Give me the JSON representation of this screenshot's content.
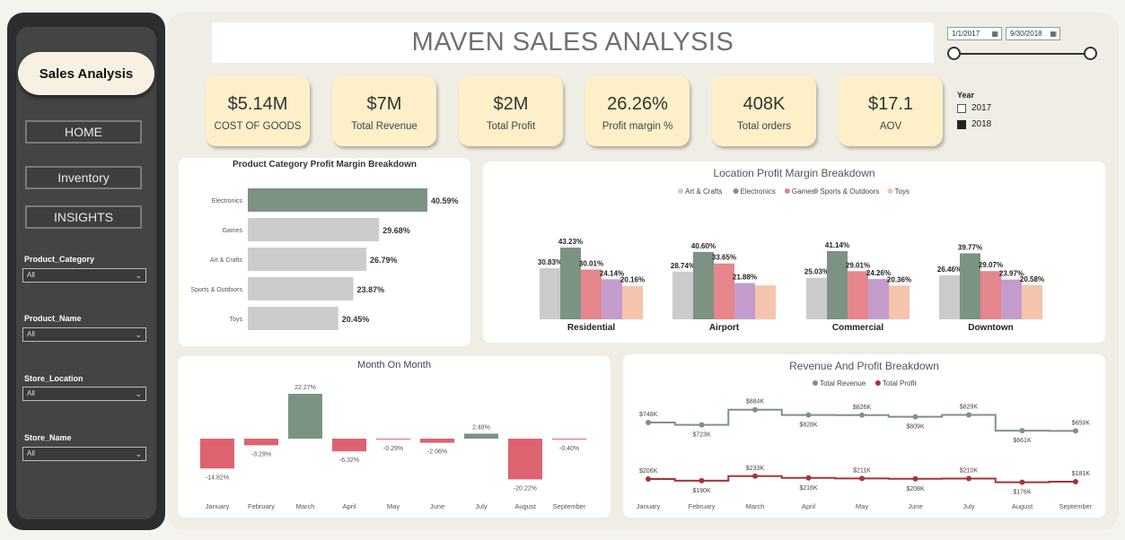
{
  "sidebar": {
    "title": "Sales Analysis",
    "nav": [
      "HOME",
      "Inventory",
      "INSIGHTS"
    ],
    "filters": [
      {
        "label": "Product_Category",
        "value": "All"
      },
      {
        "label": "Product_Name",
        "value": "All"
      },
      {
        "label": "Store_Location",
        "value": "All"
      },
      {
        "label": "Store_Name",
        "value": "All"
      }
    ]
  },
  "header": {
    "title": "MAVEN SALES ANALYSIS"
  },
  "date_range": {
    "start": "1/1/2017",
    "end": "9/30/2018"
  },
  "kpis": [
    {
      "value": "$5.14M",
      "label": "COST OF GOODS"
    },
    {
      "value": "$7M",
      "label": "Total Revenue"
    },
    {
      "value": "$2M",
      "label": "Total Profit"
    },
    {
      "value": "26.26%",
      "label": "Profit margin %"
    },
    {
      "value": "408K",
      "label": "Total orders"
    },
    {
      "value": "$17.1",
      "label": "AOV"
    }
  ],
  "year_filter": {
    "title": "Year",
    "items": [
      {
        "label": "2017",
        "checked": false
      },
      {
        "label": "2018",
        "checked": true
      }
    ]
  },
  "chart_data": [
    {
      "type": "bar",
      "orientation": "horizontal",
      "title": "Product Category Profit Margin Breakdown",
      "categories": [
        "Electronics",
        "Games",
        "Art & Crafts",
        "Sports & Outdoors",
        "Toys"
      ],
      "values": [
        40.59,
        29.68,
        26.79,
        23.87,
        20.45
      ],
      "labels": [
        "40.59%",
        "29.68%",
        "26.79%",
        "23.87%",
        "20.45%"
      ],
      "colors": [
        "#7c9384",
        "#cccccc"
      ]
    },
    {
      "type": "bar",
      "title": "Location Profit Margin Breakdown",
      "legend": "top-center",
      "categories": [
        "Residential",
        "Airport",
        "Commercial",
        "Downtown"
      ],
      "series": [
        {
          "name": "Art & Crafts",
          "color": "#cbcbcb",
          "values": [
            30.83,
            28.74,
            25.03,
            26.46
          ],
          "labels": [
            "30.83%",
            "28.74%",
            "25.03%",
            "26.46%"
          ]
        },
        {
          "name": "Electronics",
          "color": "#7c9384",
          "values": [
            43.23,
            40.6,
            41.14,
            39.77
          ],
          "labels": [
            "43.23%",
            "40.60%",
            "41.14%",
            "39.77%"
          ]
        },
        {
          "name": "Games",
          "color": "#e5868c",
          "values": [
            30.01,
            33.65,
            29.01,
            29.07
          ],
          "labels": [
            "30.01%",
            "33.65%",
            "29.01%",
            "29.07%"
          ]
        },
        {
          "name": "Sports & Outdoors",
          "color": "#c49ccc",
          "values": [
            24.14,
            21.88,
            24.26,
            23.97
          ],
          "labels": [
            "24.14%",
            "21.88%",
            "24.26%",
            "23.97%"
          ]
        },
        {
          "name": "Toys",
          "color": "#f4c4ac",
          "values": [
            20.16,
            20.4,
            20.36,
            20.58
          ],
          "labels": [
            "20.16%",
            "",
            "20.36%",
            "20.58%"
          ]
        }
      ]
    },
    {
      "type": "bar",
      "title": "Month On Month",
      "categories": [
        "January",
        "February",
        "March",
        "April",
        "May",
        "June",
        "July",
        "August",
        "September"
      ],
      "values": [
        -14.82,
        -3.29,
        22.27,
        -6.32,
        -0.29,
        -2.06,
        2.48,
        -20.22,
        -0.4
      ],
      "labels": [
        "-14.82%",
        "-3.29%",
        "22.27%",
        "-6.32%",
        "-0.29%",
        "-2.06%",
        "2.48%",
        "-20.22%",
        "-0.40%"
      ],
      "colors": {
        "positive": "#7c9384",
        "negative": "#de6370"
      }
    },
    {
      "type": "line",
      "title": "Revenue And Profit Breakdown",
      "legend": "top-center",
      "categories": [
        "January",
        "February",
        "March",
        "April",
        "May",
        "June",
        "July",
        "August",
        "September"
      ],
      "series": [
        {
          "name": "Total Revenue",
          "color": "#7c9384",
          "values": [
            748,
            723,
            884,
            828,
            826,
            809,
            829,
            661,
            659
          ],
          "labels": [
            "$748K",
            "$723K",
            "$884K",
            "$828K",
            "$826K",
            "$809K",
            "$829K",
            "$661K",
            "$659K"
          ]
        },
        {
          "name": "Total Profit",
          "color": "#a8323c",
          "values": [
            206,
            190,
            233,
            216,
            211,
            208,
            210,
            176,
            181
          ],
          "labels": [
            "$206K",
            "$190K",
            "$233K",
            "$216K",
            "$211K",
            "$208K",
            "$210K",
            "$176K",
            "$181K"
          ]
        }
      ]
    }
  ]
}
